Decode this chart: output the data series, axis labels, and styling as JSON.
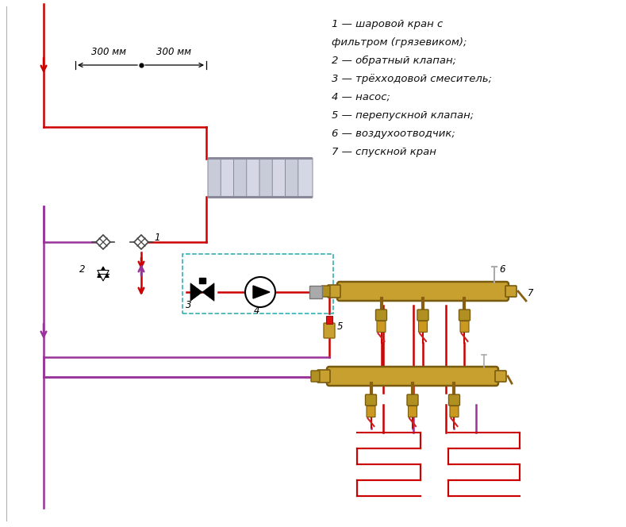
{
  "bg_color": "#ffffff",
  "pipe_red": "#cc0000",
  "pipe_purple": "#993399",
  "dashed_teal": "#22aaaa",
  "radiator_color": "#c0c4d0",
  "manifold_color": "#c8a030",
  "legend_lines": [
    "1 — шаровой кран с",
    "фильтром (грязевиком);",
    "2 — обратный клапан;",
    "3 — трёхходовой смеситель;",
    "4 — насос;",
    "5 — перепускной клапан;",
    "6 — воздухоотводчик;",
    "7 — спускной кран"
  ],
  "dim_text": "300 мм"
}
